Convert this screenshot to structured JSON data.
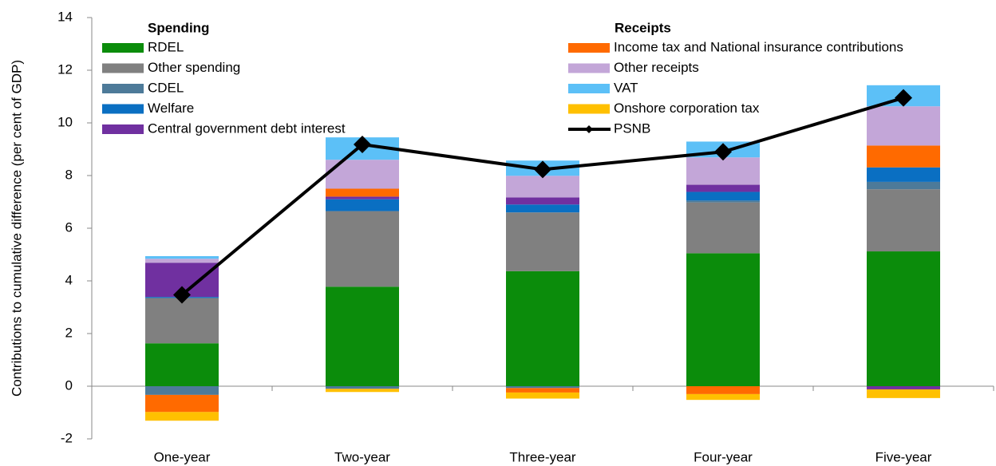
{
  "chart_data": {
    "type": "stacked-bar-line",
    "y_label": "Contributions to cumulative difference (per cent of GDP)",
    "legend_titles": [
      "Spending",
      "Receipts"
    ],
    "categories": [
      "One-year",
      "Two-year",
      "Three-year",
      "Four-year",
      "Five-year"
    ],
    "ylim": [
      -2,
      14
    ],
    "yticks": [
      -2,
      0,
      2,
      4,
      6,
      8,
      10,
      12,
      14
    ],
    "series": [
      {
        "name": "RDEL",
        "color": "#0b8c0b",
        "values": [
          1.63,
          3.78,
          4.37,
          5.05,
          5.12
        ]
      },
      {
        "name": "Other spending",
        "color": "#808080",
        "values": [
          1.72,
          2.87,
          2.23,
          1.93,
          2.36
        ]
      },
      {
        "name": "CDEL",
        "color": "#4d7a99",
        "values": [
          -0.33,
          -0.1,
          -0.07,
          0.07,
          0.28
        ]
      },
      {
        "name": "Welfare",
        "color": "#0a6fc2",
        "values": [
          0.04,
          0.45,
          0.3,
          0.33,
          0.55
        ]
      },
      {
        "name": "Central government debt interest",
        "color": "#7030a0",
        "values": [
          1.3,
          0.1,
          0.27,
          0.27,
          -0.12
        ]
      },
      {
        "name": "Income tax and National insurance contributions",
        "color": "#ff6a00",
        "values": [
          -0.65,
          0.3,
          -0.17,
          -0.3,
          0.83
        ]
      },
      {
        "name": "Other receipts",
        "color": "#c3a6d8",
        "values": [
          0.15,
          1.1,
          0.82,
          1.04,
          1.49
        ]
      },
      {
        "name": "VAT",
        "color": "#5cc0f7",
        "values": [
          0.1,
          0.85,
          0.58,
          0.6,
          0.8
        ]
      },
      {
        "name": "Onshore corporation tax",
        "color": "#ffc000",
        "values": [
          -0.33,
          -0.12,
          -0.23,
          -0.22,
          -0.33
        ]
      }
    ],
    "line": {
      "name": "PSNB",
      "color": "#000000",
      "values": [
        3.47,
        9.18,
        8.23,
        8.9,
        10.95
      ]
    }
  }
}
